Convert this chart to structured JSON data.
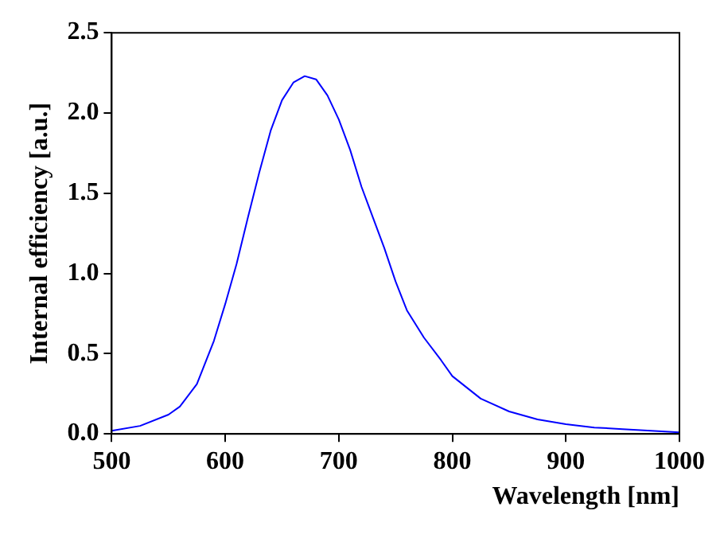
{
  "chart_data": {
    "type": "line",
    "xlabel": "Wavelength [nm]",
    "ylabel": "Internal efficiency [a.u.]",
    "series": [
      {
        "color": "#0000ff",
        "x": [
          500,
          525,
          550,
          560,
          575,
          590,
          600,
          610,
          620,
          630,
          640,
          650,
          660,
          670,
          680,
          690,
          700,
          710,
          720,
          730,
          740,
          750,
          760,
          775,
          790,
          800,
          825,
          850,
          875,
          900,
          925,
          950,
          975,
          1000
        ],
        "values": [
          0.02,
          0.05,
          0.12,
          0.17,
          0.31,
          0.58,
          0.81,
          1.06,
          1.35,
          1.63,
          1.89,
          2.08,
          2.19,
          2.23,
          2.21,
          2.11,
          1.96,
          1.77,
          1.54,
          1.35,
          1.16,
          0.95,
          0.77,
          0.6,
          0.46,
          0.36,
          0.22,
          0.14,
          0.09,
          0.06,
          0.04,
          0.03,
          0.02,
          0.01
        ]
      }
    ],
    "xlim": [
      500,
      1000
    ],
    "xticks": [
      500,
      600,
      700,
      800,
      900,
      1000
    ],
    "ylim": [
      0,
      2.5
    ],
    "yticks": [
      {
        "value": 0,
        "label": "0.0"
      },
      {
        "value": 0.5,
        "label": "0.5"
      },
      {
        "value": 1,
        "label": "1.0"
      },
      {
        "value": 1.5,
        "label": "1.5"
      },
      {
        "value": 2,
        "label": "2.0"
      },
      {
        "value": 2.5,
        "label": "2.5"
      }
    ],
    "grid": false,
    "legend": false,
    "marker": "none",
    "line_style": "solid"
  }
}
